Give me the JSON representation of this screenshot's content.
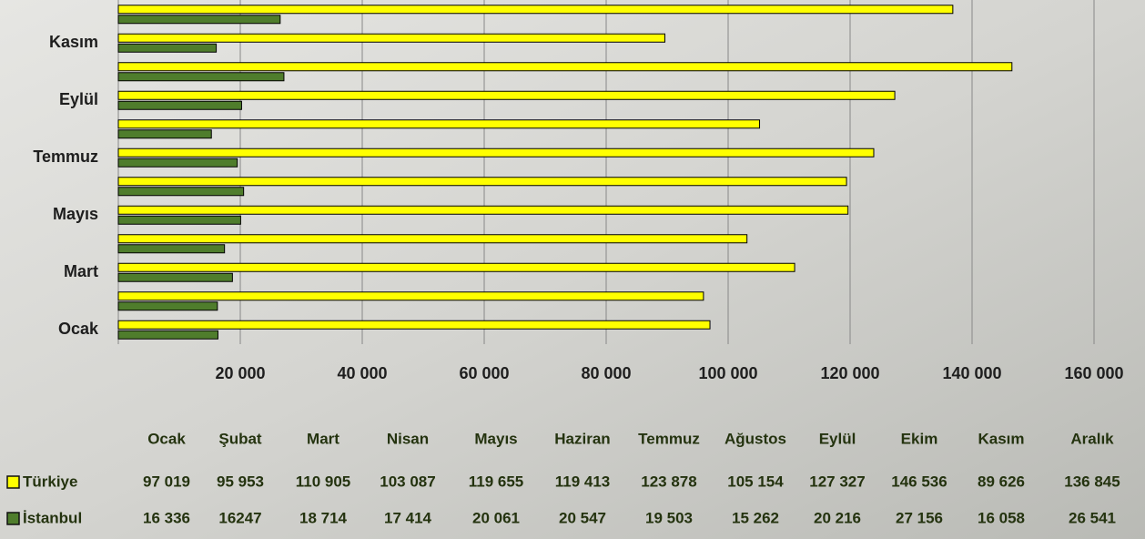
{
  "chart_data": {
    "type": "bar",
    "orientation": "horizontal",
    "categories": [
      "Ocak",
      "Şubat",
      "Mart",
      "Nisan",
      "Mayıs",
      "Haziran",
      "Temmuz",
      "Ağustos",
      "Eylül",
      "Ekim",
      "Kasım",
      "Aralık"
    ],
    "series": [
      {
        "name": "Türkiye",
        "color": "#ffff00",
        "values": [
          97019,
          95953,
          110905,
          103087,
          119655,
          119413,
          123878,
          105154,
          127327,
          146536,
          89626,
          136845
        ],
        "value_labels": [
          "97 019",
          "95 953",
          "110 905",
          "103 087",
          "119 655",
          "119 413",
          "123 878",
          "105 154",
          "127 327",
          "146 536",
          "89 626",
          "136 845"
        ]
      },
      {
        "name": "İstanbul",
        "color": "#4f7d2c",
        "values": [
          16336,
          16247,
          18714,
          17414,
          20061,
          20547,
          19503,
          15262,
          20216,
          27156,
          16058,
          26541
        ],
        "value_labels": [
          "16 336",
          "16247",
          "18 714",
          "17 414",
          "20 061",
          "20 547",
          "19 503",
          "15 262",
          "20 216",
          "27 156",
          "16 058",
          "26 541"
        ]
      }
    ],
    "xlim": [
      0,
      160000
    ],
    "xticks": [
      {
        "value": 20000,
        "label": "20 000"
      },
      {
        "value": 40000,
        "label": "40 000"
      },
      {
        "value": 60000,
        "label": "60 000"
      },
      {
        "value": 80000,
        "label": "80 000"
      },
      {
        "value": 100000,
        "label": "100 000"
      },
      {
        "value": 120000,
        "label": "120 000"
      },
      {
        "value": 140000,
        "label": "140 000"
      },
      {
        "value": 160000,
        "label": "160 000"
      }
    ],
    "grid": true
  }
}
